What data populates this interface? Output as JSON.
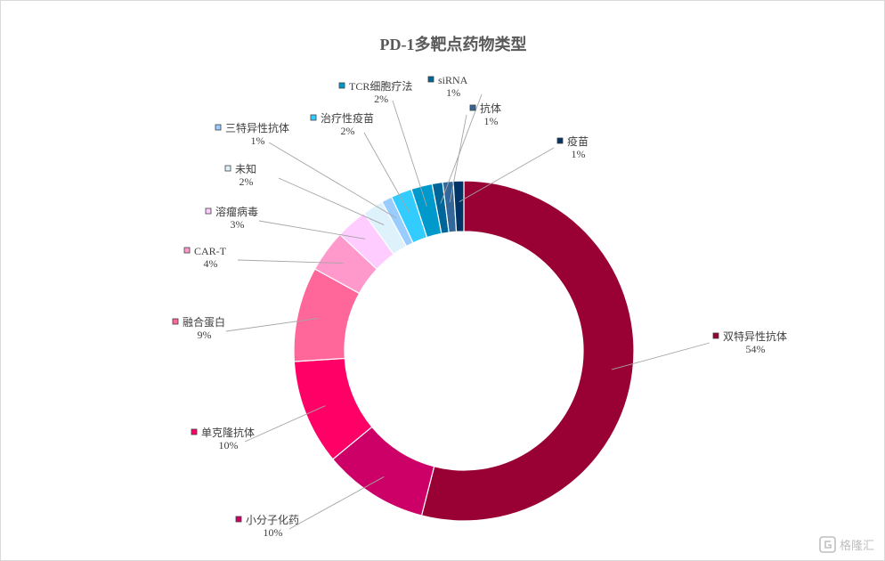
{
  "chart_data": {
    "type": "pie",
    "style": "donut",
    "title": "PD-1多靶点药物类型",
    "legend": "none",
    "slices": [
      {
        "label": "双特异性抗体",
        "value": 54,
        "pct": "54%",
        "color": "#990033"
      },
      {
        "label": "小分子化药",
        "value": 10,
        "pct": "10%",
        "color": "#cc0066"
      },
      {
        "label": "单克隆抗体",
        "value": 10,
        "pct": "10%",
        "color": "#ff0066"
      },
      {
        "label": "融合蛋白",
        "value": 9,
        "pct": "9%",
        "color": "#ff6699"
      },
      {
        "label": "CAR-T",
        "value": 4,
        "pct": "4%",
        "color": "#ff99cc"
      },
      {
        "label": "溶瘤病毒",
        "value": 3,
        "pct": "3%",
        "color": "#ffccff"
      },
      {
        "label": "未知",
        "value": 2,
        "pct": "2%",
        "color": "#ddf2fb"
      },
      {
        "label": "三特异性抗体",
        "value": 1,
        "pct": "1%",
        "color": "#99ccff"
      },
      {
        "label": "治疗性疫苗",
        "value": 2,
        "pct": "2%",
        "color": "#33ccff"
      },
      {
        "label": "TCR细胞疗法",
        "value": 2,
        "pct": "2%",
        "color": "#0099cc"
      },
      {
        "label": "siRNA",
        "value": 1,
        "pct": "1%",
        "color": "#006699"
      },
      {
        "label": "抗体",
        "value": 1,
        "pct": "1%",
        "color": "#336699"
      },
      {
        "label": "疫苗",
        "value": 1,
        "pct": "1%",
        "color": "#003366"
      }
    ]
  },
  "watermark": {
    "text": "格隆汇"
  }
}
